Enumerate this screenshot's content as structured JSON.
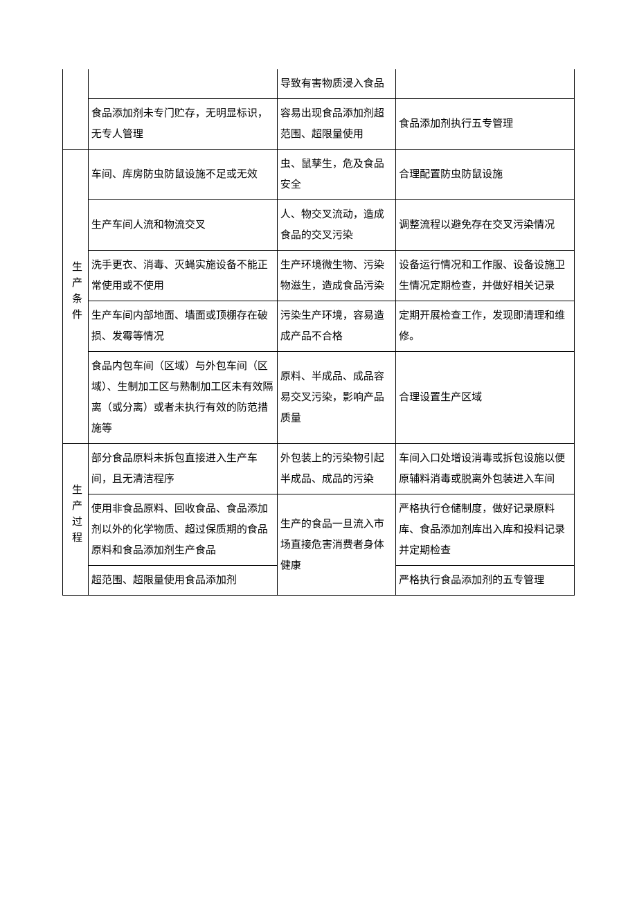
{
  "colors": {
    "border": "#000000",
    "text": "#000000",
    "background": "#ffffff"
  },
  "typography": {
    "font_family": "SimSun",
    "font_size_pt": 11,
    "line_height": 2.0
  },
  "table": {
    "column_widths_pct": [
      5,
      37,
      23,
      35
    ],
    "sections": [
      {
        "category": "",
        "rows": [
          {
            "problem": "",
            "risk": "导致有害物质浸入食品",
            "measure": ""
          },
          {
            "problem": "食品添加剂未专门贮存，无明显标识，无专人管理",
            "risk": "容易出现食品添加剂超范围、超限量使用",
            "measure": "食品添加剂执行五专管理"
          }
        ]
      },
      {
        "category": "生产条件",
        "rows": [
          {
            "problem": "车间、库房防虫防鼠设施不足或无效",
            "risk": "虫、鼠孳生，危及食品安全",
            "measure": "合理配置防虫防鼠设施"
          },
          {
            "problem": "生产车间人流和物流交叉",
            "risk": "人、物交叉流动，造成食品的交叉污染",
            "measure": "调整流程以避免存在交叉污染情况"
          },
          {
            "problem": "洗手更衣、消毒、灭蝇实施设备不能正常使用或不使用",
            "risk": "生产环境微生物、污染物滋生，造成食品污染",
            "measure": "设备运行情况和工作服、设备设施卫生情况定期检查，并做好相关记录"
          },
          {
            "problem": "生产车间内部地面、墙面或顶棚存在破损、发霉等情况",
            "risk": "污染生产环境，容易造成产品不合格",
            "measure": "定期开展检查工作，发现即清理和维修。"
          },
          {
            "problem": "食品内包车间（区域）与外包车间（区域）、生制加工区与熟制加工区未有效隔离（或分离）或者未执行有效的防范措施等",
            "risk": "原料、半成品、成品容易交叉污染，影响产品质量",
            "measure": "合理设置生产区域"
          }
        ]
      },
      {
        "category": "生产过程",
        "rows": [
          {
            "problem": "部分食品原料未拆包直接进入生产车间，且无清洁程序",
            "risk": "外包装上的污染物引起半成品、成品的污染",
            "measure": "车间入口处增设消毒或拆包设施以便原辅料消毒或脱离外包装进入车间"
          },
          {
            "problem": "使用非食品原料、回收食品、食品添加剂以外的化学物质、超过保质期的食品原料和食品添加剂生产食品",
            "risk": "生产的食品一旦流入市场直接危害消费者身体健康",
            "measure": "严格执行仓储制度，做好记录原料库、食品添加剂库出入库和投料记录并定期检查",
            "risk_rowspan": 2
          },
          {
            "problem": "超范围、超限量使用食品添加剂",
            "risk": null,
            "measure": "严格执行食品添加剂的五专管理"
          }
        ]
      }
    ]
  }
}
